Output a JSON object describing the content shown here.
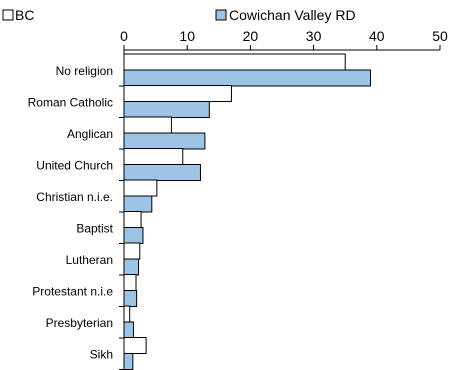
{
  "chart_data": {
    "type": "bar",
    "orientation": "horizontal",
    "categories": [
      "No religion",
      "Roman Catholic",
      "Anglican",
      "United Church",
      "Christian n.i.e.",
      "Baptist",
      "Lutheran",
      "Protestant n.i.e",
      "Presbyterian",
      "Sikh"
    ],
    "series": [
      {
        "name": "BC",
        "color": "#ffffff",
        "values": [
          35.0,
          17.0,
          7.5,
          9.3,
          5.2,
          2.7,
          2.5,
          1.9,
          0.9,
          3.5
        ]
      },
      {
        "name": "Cowichan Valley RD",
        "color": "#9dc3e6",
        "values": [
          39.0,
          13.5,
          12.8,
          12.1,
          4.4,
          3.0,
          2.3,
          2.0,
          1.5,
          1.4
        ]
      }
    ],
    "xlim": [
      0,
      50
    ],
    "xticks": [
      "0",
      "10",
      "20",
      "30",
      "40",
      "50"
    ],
    "tick_position": "top",
    "legend_position": "top",
    "grid": false
  }
}
